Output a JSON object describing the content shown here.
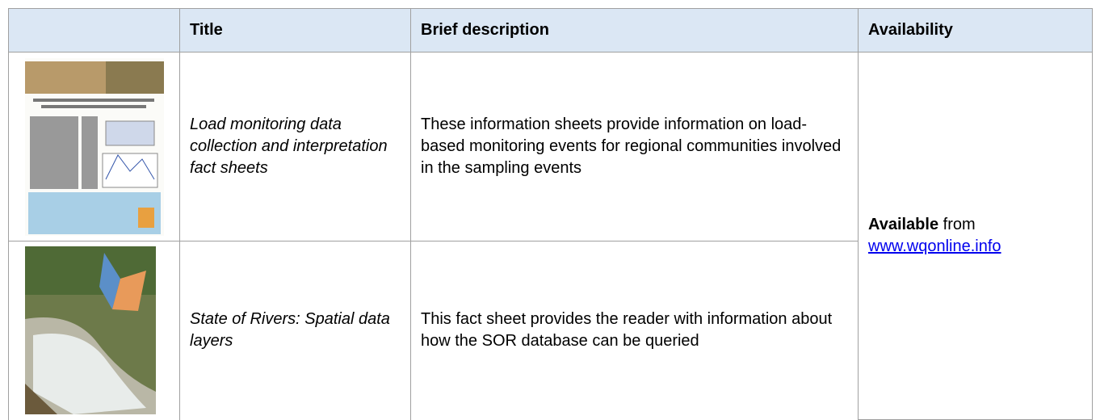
{
  "table": {
    "header": [
      "Title",
      "Brief description",
      "Availability"
    ],
    "rows": [
      {
        "title": "Load monitoring data collection and interpretation fact sheets",
        "description": "These information sheets provide information on load-based monitoring events for regional communities involved in the sampling events"
      },
      {
        "title": "State of Rivers: Spatial data layers",
        "description": "This fact sheet provides the reader with information about how the SOR database can be queried"
      }
    ],
    "availability": {
      "bold": "Available",
      "text": "from",
      "link": "www.wqonline.info"
    }
  }
}
